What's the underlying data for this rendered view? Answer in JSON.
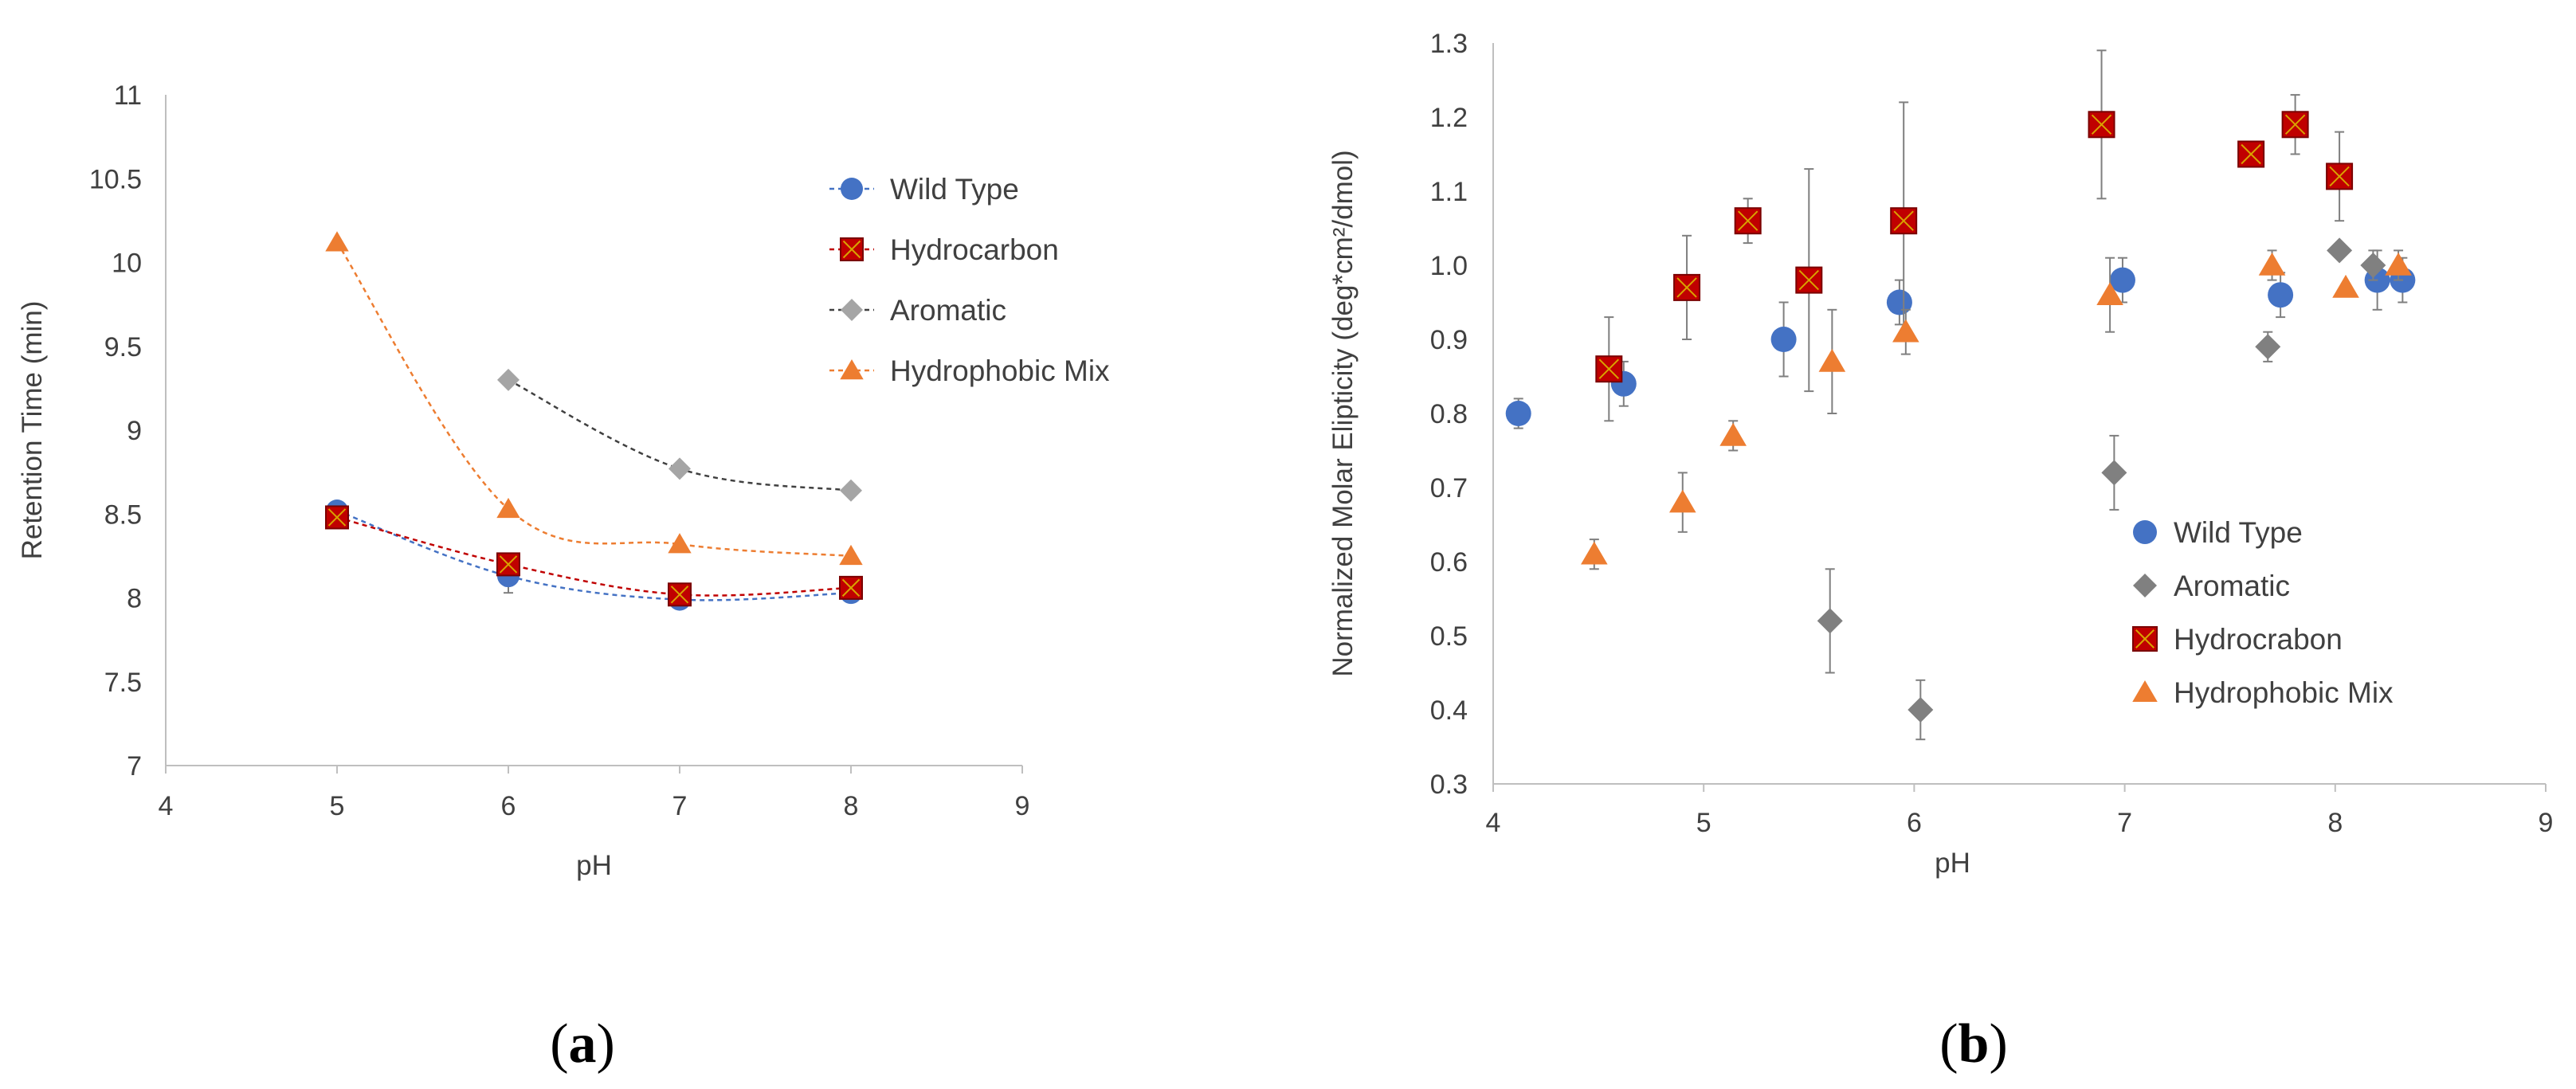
{
  "figure": {
    "panel_a_label": "a",
    "panel_b_label": "b"
  },
  "colors": {
    "wild_type": "#4472C4",
    "hydrocarbon": "#C00000",
    "aromatic": "#A5A5A5",
    "aromatic_dark": "#808080",
    "hydrophobic_mix": "#ED7D31",
    "axis": "#BFBFBF",
    "error_bar": "#7F7F7F",
    "text": "#404040"
  },
  "chart_data": [
    {
      "id": "a",
      "type": "line",
      "title": "",
      "xlabel": "pH",
      "ylabel": "Retention Time (min)",
      "xlim": [
        4,
        9
      ],
      "ylim": [
        7,
        11
      ],
      "xticks": [
        4,
        5,
        6,
        7,
        8,
        9
      ],
      "yticks": [
        7,
        7.5,
        8,
        8.5,
        9,
        9.5,
        10,
        10.5,
        11
      ],
      "grid": false,
      "legend_position": "top-right",
      "series": [
        {
          "name": "Wild Type",
          "marker": "circle",
          "color_key": "wild_type",
          "line": "dashed-smooth",
          "x": [
            5,
            6,
            7,
            8
          ],
          "y": [
            8.52,
            8.13,
            7.99,
            8.03
          ],
          "err": [
            0,
            0.1,
            0,
            0
          ]
        },
        {
          "name": "Hydrocarbon",
          "marker": "square-x",
          "color_key": "hydrocarbon",
          "line": "dashed-smooth",
          "x": [
            5,
            6,
            7,
            8
          ],
          "y": [
            8.48,
            8.2,
            8.02,
            8.06
          ],
          "err": [
            0,
            0,
            0,
            0
          ]
        },
        {
          "name": "Aromatic",
          "marker": "diamond",
          "color_key": "aromatic",
          "line": "dashed-smooth",
          "line_color_key": "axis_dark",
          "x": [
            6,
            7,
            8
          ],
          "y": [
            9.3,
            8.77,
            8.64
          ],
          "err": [
            0,
            0,
            0
          ]
        },
        {
          "name": "Hydrophobic Mix",
          "marker": "triangle",
          "color_key": "hydrophobic_mix",
          "line": "dashed-smooth",
          "x": [
            5,
            6,
            7,
            8
          ],
          "y": [
            10.12,
            8.53,
            8.32,
            8.25
          ],
          "err": [
            0,
            0,
            0,
            0
          ]
        }
      ]
    },
    {
      "id": "b",
      "type": "scatter",
      "title": "",
      "xlabel": "pH",
      "ylabel": "Normalized Molar Elipticity  (deg*cm²/dmol)",
      "xlim": [
        4,
        9
      ],
      "ylim": [
        0.3,
        1.3
      ],
      "xticks": [
        4,
        5,
        6,
        7,
        8,
        9
      ],
      "yticks": [
        0.3,
        0.4,
        0.5,
        0.6,
        0.7,
        0.8,
        0.9,
        1.0,
        1.1,
        1.2,
        1.3
      ],
      "grid": false,
      "legend_position": "bottom-right",
      "series": [
        {
          "name": "Wild Type",
          "marker": "circle",
          "color_key": "wild_type",
          "x": [
            4.12,
            4.62,
            5.38,
            5.93,
            6.99,
            7.74,
            8.2,
            8.32
          ],
          "y": [
            0.8,
            0.84,
            0.9,
            0.95,
            0.98,
            0.96,
            0.98,
            0.98
          ],
          "err": [
            0.02,
            0.03,
            0.05,
            0.03,
            0.03,
            0.03,
            0.04,
            0.03
          ]
        },
        {
          "name": "Aromatic",
          "marker": "diamond",
          "color_key": "aromatic_dark",
          "x": [
            5.6,
            6.03,
            6.95,
            7.68,
            8.02,
            8.18
          ],
          "y": [
            0.52,
            0.4,
            0.72,
            0.89,
            1.02,
            1.0
          ],
          "err": [
            0.07,
            0.04,
            0.05,
            0.02,
            0.0,
            0.02
          ]
        },
        {
          "name": "Hydrocrabon",
          "marker": "square-x",
          "color_key": "hydrocarbon",
          "x": [
            4.55,
            4.92,
            5.21,
            5.5,
            5.95,
            6.89,
            7.6,
            7.81,
            8.02
          ],
          "y": [
            0.86,
            0.97,
            1.06,
            0.98,
            1.06,
            1.19,
            1.15,
            1.19,
            1.12
          ],
          "err": [
            0.07,
            0.07,
            0.03,
            0.15,
            0.16,
            0.1,
            0.0,
            0.04,
            0.06
          ]
        },
        {
          "name": "Hydrophobic Mix",
          "marker": "triangle",
          "color_key": "hydrophobic_mix",
          "x": [
            4.48,
            4.9,
            5.14,
            5.61,
            5.96,
            6.93,
            7.7,
            8.05,
            8.3
          ],
          "y": [
            0.61,
            0.68,
            0.77,
            0.87,
            0.91,
            0.96,
            1.0,
            0.97,
            1.0
          ],
          "err": [
            0.02,
            0.04,
            0.02,
            0.07,
            0.03,
            0.05,
            0.02,
            0.0,
            0.02
          ]
        }
      ]
    }
  ]
}
